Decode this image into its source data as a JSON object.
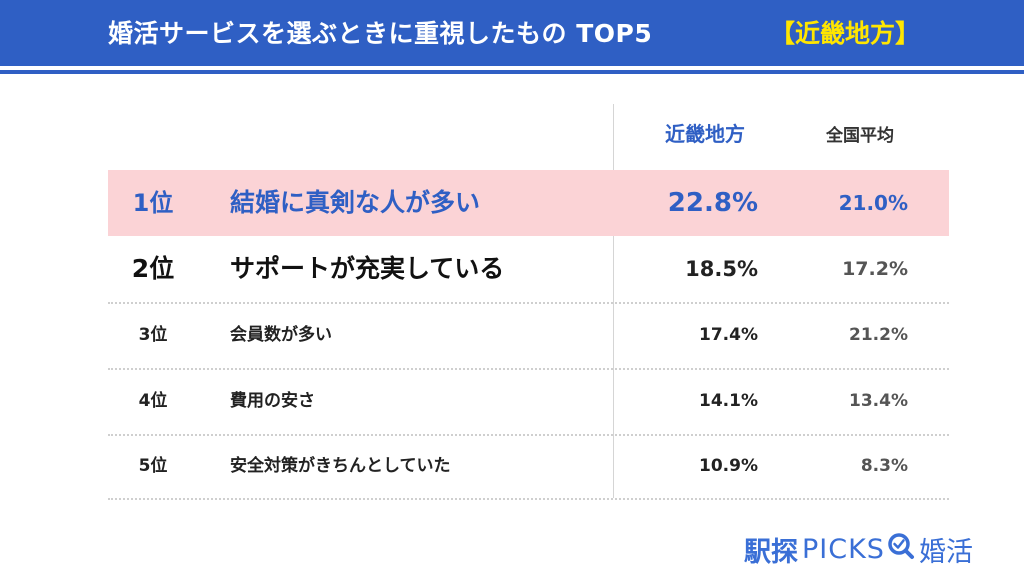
{
  "header": {
    "title": "婚活サービスを選ぶときに重視したもの TOP5",
    "region_tag": "【近畿地方】"
  },
  "columns": {
    "region": "近畿地方",
    "national": "全国平均"
  },
  "rows": [
    {
      "rank": "1位",
      "item": "結婚に真剣な人が多い",
      "region_value": "22.8%",
      "national_value": "21.0%"
    },
    {
      "rank": "2位",
      "item": "サポートが充実している",
      "region_value": "18.5%",
      "national_value": "17.2%"
    },
    {
      "rank": "3位",
      "item": "会員数が多い",
      "region_value": "17.4%",
      "national_value": "21.2%"
    },
    {
      "rank": "4位",
      "item": "費用の安さ",
      "region_value": "14.1%",
      "national_value": "13.4%"
    },
    {
      "rank": "5位",
      "item": "安全対策がきちんとしていた",
      "region_value": "10.9%",
      "national_value": "8.3%"
    }
  ],
  "logo": {
    "brand": "駅探",
    "picks": "PICKS",
    "icon": "magnifier-check-icon",
    "suffix": "婚活"
  },
  "colors": {
    "header_bg": "#2f5fc4",
    "region_tag": "#ffe600",
    "highlight_row": "#fbd3d6",
    "accent_blue": "#2f5fc4"
  },
  "chart_data": {
    "type": "table",
    "title": "婚活サービスを選ぶときに重視したもの TOP5",
    "columns": [
      "",
      "",
      "近畿地方",
      "全国平均"
    ],
    "rows": [
      [
        "1位",
        "結婚に真剣な人が多い",
        22.8,
        21.0
      ],
      [
        "2位",
        "サポートが充実している",
        18.5,
        17.2
      ],
      [
        "3位",
        "会員数が多い",
        17.4,
        21.2
      ],
      [
        "4位",
        "費用の安さ",
        14.1,
        13.4
      ],
      [
        "5位",
        "安全対策がきちんとしていた",
        10.9,
        8.3
      ]
    ],
    "unit": "%"
  }
}
